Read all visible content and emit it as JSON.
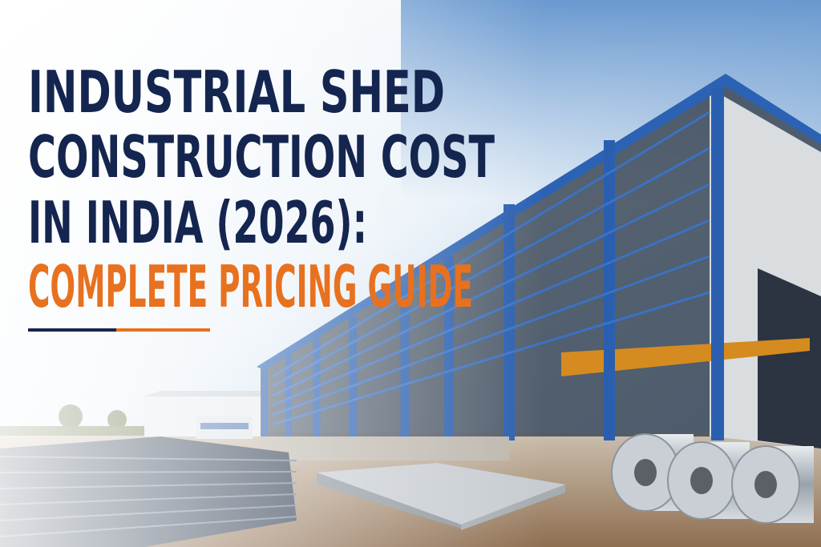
{
  "headline": {
    "lines": [
      "INDUSTRIAL SHED",
      "CONSTRUCTION COST",
      "IN INDIA (2026):"
    ],
    "subtitle": "COMPLETE PRICING GUIDE"
  }
}
